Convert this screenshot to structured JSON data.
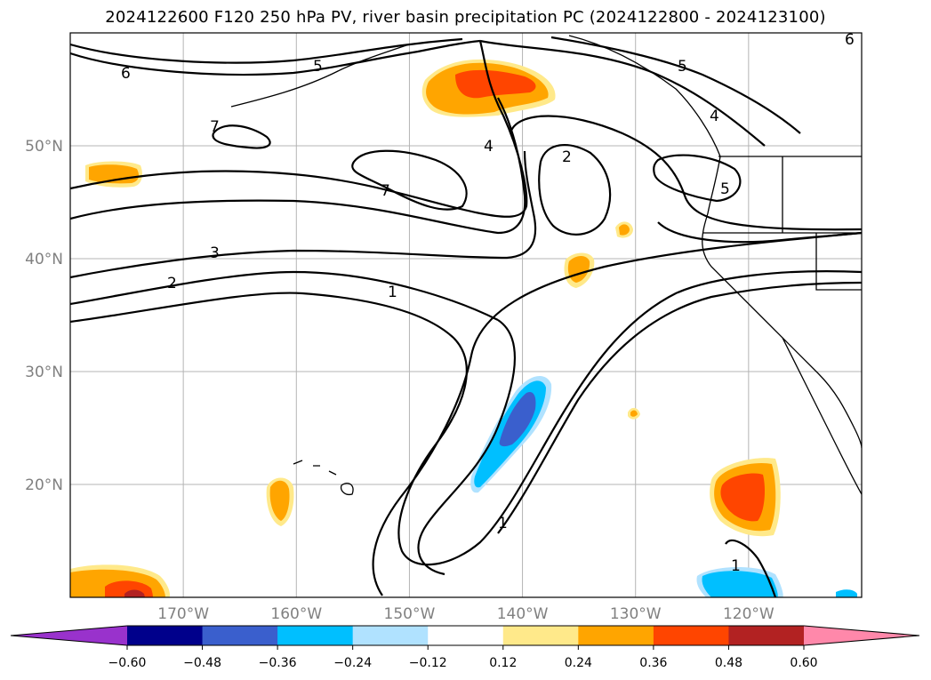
{
  "title": "2024122600 F120 250 hPa PV, river basin precipitation PC (2024122800 - 2024123100)",
  "map": {
    "lat_ticks": [
      {
        "value": 50,
        "label": "50°N"
      },
      {
        "value": 40,
        "label": "40°N"
      },
      {
        "value": 30,
        "label": "30°N"
      },
      {
        "value": 20,
        "label": "20°N"
      }
    ],
    "lon_ticks": [
      {
        "value": -170,
        "label": "170°W"
      },
      {
        "value": -160,
        "label": "160°W"
      },
      {
        "value": -150,
        "label": "150°W"
      },
      {
        "value": -140,
        "label": "140°W"
      },
      {
        "value": -130,
        "label": "130°W"
      },
      {
        "value": -120,
        "label": "120°W"
      }
    ],
    "extent": {
      "lon": [
        -180,
        -110
      ],
      "lat": [
        10,
        60
      ]
    },
    "gridlines": true,
    "contour_labels": [
      "6",
      "5",
      "4",
      "7",
      "2",
      "3",
      "1"
    ]
  },
  "colorbar": {
    "ticks": [
      "−0.60",
      "−0.48",
      "−0.36",
      "−0.24",
      "−0.12",
      "0.12",
      "0.24",
      "0.36",
      "0.48",
      "0.60"
    ],
    "colors": [
      "#9932cc",
      "#00008b",
      "#3a5fcd",
      "#00bfff",
      "#b0e2ff",
      "#ffffff",
      "#ffe98a",
      "#ffa500",
      "#ff4500",
      "#b22222",
      "#ff88aa"
    ]
  }
}
